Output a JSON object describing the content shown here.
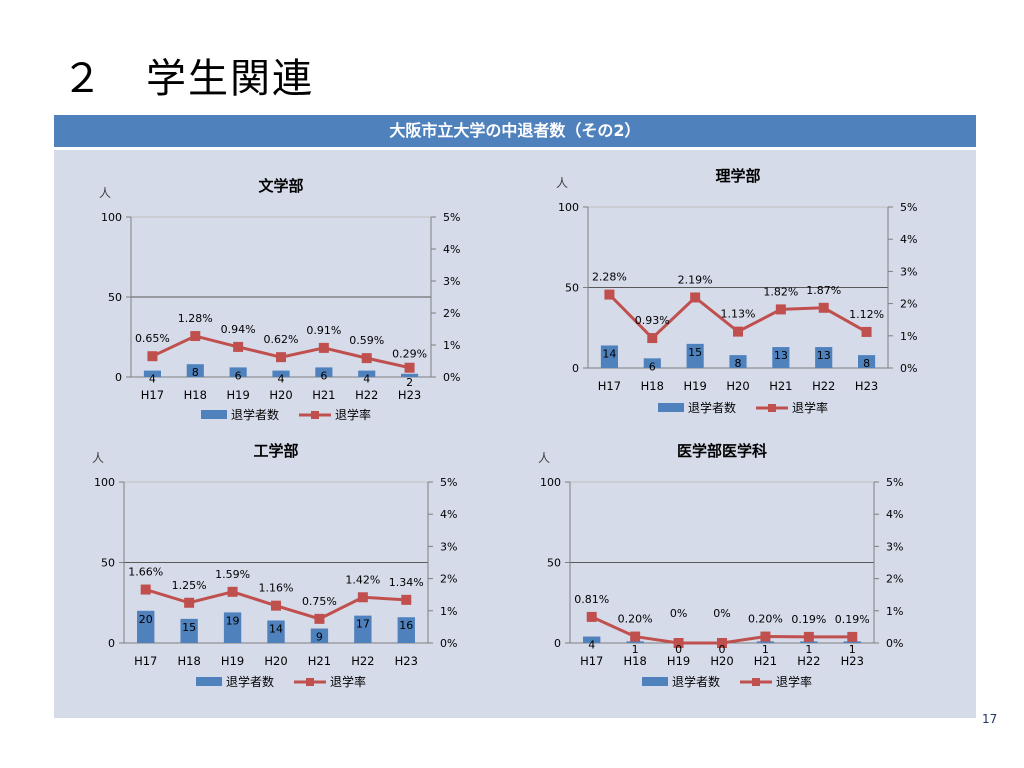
{
  "slide": {
    "title": "２　学生関連",
    "banner": "大阪市立大学の中退者数（その2）",
    "page_number": "17"
  },
  "colors": {
    "banner": "#4f81bd",
    "panel": "#d6dbea",
    "bar": "#4f81bd",
    "line": "#c0504d",
    "axis": "#7f7f7f"
  },
  "chart_data": [
    {
      "type": "bar+line",
      "title": "文学部",
      "unit_label": "人",
      "categories": [
        "H17",
        "H18",
        "H19",
        "H20",
        "H21",
        "H22",
        "H23"
      ],
      "ylim": [
        0,
        100
      ],
      "y_ticks": [
        "0",
        "50",
        "100"
      ],
      "y2lim": [
        0,
        5
      ],
      "y2_ticks": [
        "0%",
        "1%",
        "2%",
        "3%",
        "4%",
        "5%"
      ],
      "gridlines": [
        50
      ],
      "legend_position": "bottom",
      "series": [
        {
          "name": "退学者数",
          "kind": "bar",
          "values": [
            4,
            8,
            6,
            4,
            6,
            4,
            2
          ],
          "labels": [
            "4",
            "8",
            "6",
            "4",
            "6",
            "4",
            "2"
          ]
        },
        {
          "name": "退学率",
          "kind": "line",
          "axis": "right",
          "values": [
            0.65,
            1.28,
            0.94,
            0.62,
            0.91,
            0.59,
            0.29
          ],
          "labels": [
            "0.65%",
            "1.28%",
            "0.94%",
            "0.62%",
            "0.91%",
            "0.59%",
            "0.29%"
          ]
        }
      ]
    },
    {
      "type": "bar+line",
      "title": "理学部",
      "unit_label": "人",
      "categories": [
        "H17",
        "H18",
        "H19",
        "H20",
        "H21",
        "H22",
        "H23"
      ],
      "ylim": [
        0,
        100
      ],
      "y_ticks": [
        "0",
        "50",
        "100"
      ],
      "y2lim": [
        0,
        5
      ],
      "y2_ticks": [
        "0%",
        "1%",
        "2%",
        "3%",
        "4%",
        "5%"
      ],
      "gridlines": [
        50
      ],
      "legend_position": "bottom",
      "series": [
        {
          "name": "退学者数",
          "kind": "bar",
          "values": [
            14,
            6,
            15,
            8,
            13,
            13,
            8
          ],
          "labels": [
            "14",
            "6",
            "15",
            "8",
            "13",
            "13",
            "8"
          ]
        },
        {
          "name": "退学率",
          "kind": "line",
          "axis": "right",
          "values": [
            2.28,
            0.93,
            2.19,
            1.13,
            1.82,
            1.87,
            1.12
          ],
          "labels": [
            "2.28%",
            "0.93%",
            "2.19%",
            "1.13%",
            "1.82%",
            "1.87%",
            "1.12%"
          ]
        }
      ]
    },
    {
      "type": "bar+line",
      "title": "工学部",
      "unit_label": "人",
      "categories": [
        "H17",
        "H18",
        "H19",
        "H20",
        "H21",
        "H22",
        "H23"
      ],
      "ylim": [
        0,
        100
      ],
      "y_ticks": [
        "0",
        "50",
        "100"
      ],
      "y2lim": [
        0,
        5
      ],
      "y2_ticks": [
        "0%",
        "1%",
        "2%",
        "3%",
        "4%",
        "5%"
      ],
      "gridlines": [
        50
      ],
      "legend_position": "bottom",
      "series": [
        {
          "name": "退学者数",
          "kind": "bar",
          "values": [
            20,
            15,
            19,
            14,
            9,
            17,
            16
          ],
          "labels": [
            "20",
            "15",
            "19",
            "14",
            "9",
            "17",
            "16"
          ]
        },
        {
          "name": "退学率",
          "kind": "line",
          "axis": "right",
          "values": [
            1.66,
            1.25,
            1.59,
            1.16,
            0.75,
            1.42,
            1.34
          ],
          "labels": [
            "1.66%",
            "1.25%",
            "1.59%",
            "1.16%",
            "0.75%",
            "1.42%",
            "1.34%"
          ]
        }
      ]
    },
    {
      "type": "bar+line",
      "title": "医学部医学科",
      "unit_label": "人",
      "categories": [
        "H17",
        "H18",
        "H19",
        "H20",
        "H21",
        "H22",
        "H23"
      ],
      "ylim": [
        0,
        100
      ],
      "y_ticks": [
        "0",
        "50",
        "100"
      ],
      "y2lim": [
        0,
        5
      ],
      "y2_ticks": [
        "0%",
        "1%",
        "2%",
        "3%",
        "4%",
        "5%"
      ],
      "gridlines": [
        50
      ],
      "legend_position": "bottom",
      "series": [
        {
          "name": "退学者数",
          "kind": "bar",
          "values": [
            4,
            1,
            0,
            0,
            1,
            1,
            1
          ],
          "labels": [
            "4",
            "1",
            "0",
            "0",
            "1",
            "1",
            "1"
          ]
        },
        {
          "name": "退学率",
          "kind": "line",
          "axis": "right",
          "values": [
            0.81,
            0.2,
            0,
            0,
            0.2,
            0.19,
            0.19
          ],
          "labels": [
            "0.81%",
            "0.20%",
            "0%",
            "0%",
            "0.20%",
            "0.19%",
            "0.19%"
          ]
        }
      ]
    }
  ]
}
